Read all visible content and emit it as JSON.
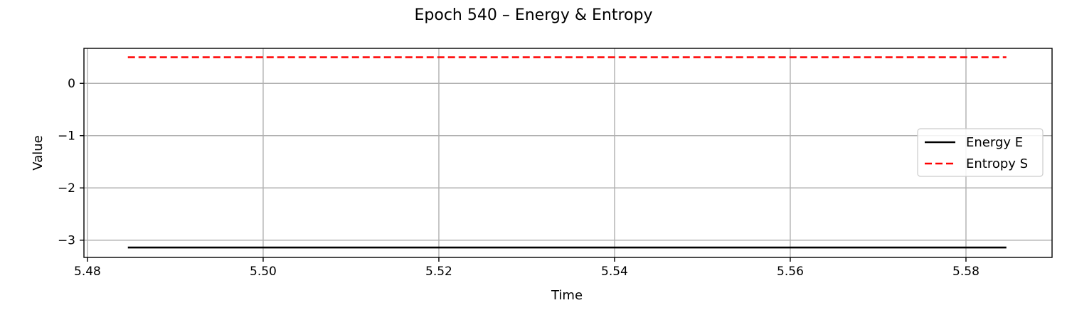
{
  "chart_data": {
    "type": "line",
    "title": "Epoch 540 – Energy & Entropy",
    "xlabel": "Time",
    "ylabel": "Value",
    "xlim": [
      5.4796,
      5.5898
    ],
    "ylim": [
      -3.33,
      0.67
    ],
    "xticks": [
      5.48,
      5.5,
      5.52,
      5.54,
      5.56,
      5.58
    ],
    "xtick_labels": [
      "5.48",
      "5.50",
      "5.52",
      "5.54",
      "5.56",
      "5.58"
    ],
    "yticks": [
      0,
      -1,
      -2,
      -3
    ],
    "ytick_labels": [
      "0",
      "−1",
      "−2",
      "−3"
    ],
    "grid": true,
    "legend_position": "center-right",
    "series": [
      {
        "name": "Energy E",
        "color": "#000000",
        "style": "solid",
        "x": [
          5.4846,
          5.5846
        ],
        "y": [
          -3.14,
          -3.14
        ]
      },
      {
        "name": "Entropy S",
        "color": "#ff0000",
        "style": "dashed",
        "x": [
          5.4846,
          5.5846
        ],
        "y": [
          0.5,
          0.5
        ]
      }
    ]
  }
}
